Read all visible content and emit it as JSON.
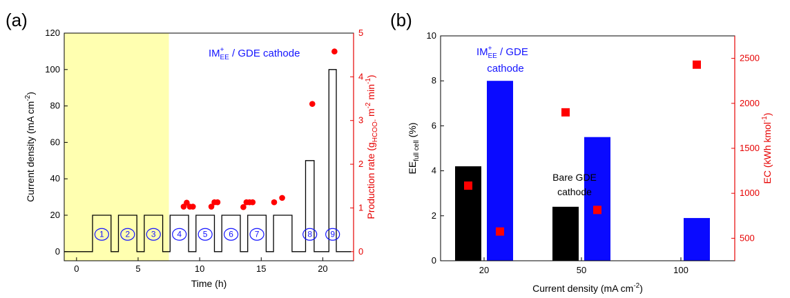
{
  "chart_data": [
    {
      "type": "line",
      "panel_label": "(a)",
      "xlabel": "Time (h)",
      "ylabel": {
        "main": "Current density (mA cm",
        "sup": "-2",
        "end": ")"
      },
      "y2label": {
        "main": "Production rate (g",
        "sub": "HCOO-",
        "mid": " m",
        "sup1": "-2",
        "mid2": " min",
        "sup2": "-1",
        "end": ")"
      },
      "xlim": [
        -1,
        22.5
      ],
      "ylim": [
        -5,
        120
      ],
      "y2lim": [
        -0.2083,
        5
      ],
      "xticks": [
        0,
        5,
        10,
        15,
        20
      ],
      "yticks": [
        0,
        20,
        40,
        60,
        80,
        100,
        120
      ],
      "y2ticks": [
        0,
        1,
        2,
        3,
        4,
        5
      ],
      "annotation": {
        "main": "IM",
        "sup": "+",
        "sub": "EE",
        "rest": " / GDE cathode"
      },
      "shaded_region": {
        "x0": -1,
        "x1": 7.5,
        "color": "#ffffb0"
      },
      "current_profile": {
        "x": [
          -1,
          1.3,
          1.3,
          2.8,
          2.8,
          3.4,
          3.4,
          4.9,
          4.9,
          5.5,
          5.5,
          7.0,
          7.0,
          7.6,
          7.6,
          9.1,
          9.1,
          9.7,
          9.7,
          11.2,
          11.2,
          11.8,
          11.8,
          13.3,
          13.3,
          13.9,
          13.9,
          15.4,
          15.4,
          16.0,
          16.0,
          17.5,
          17.5,
          18.6,
          18.6,
          19.3,
          19.3,
          20.5,
          20.5,
          21.1,
          21.1,
          22.3
        ],
        "y": [
          0,
          0,
          20,
          20,
          0,
          0,
          20,
          20,
          0,
          0,
          20,
          20,
          0,
          0,
          20,
          20,
          0,
          0,
          20,
          20,
          0,
          0,
          20,
          20,
          0,
          0,
          20,
          20,
          0,
          0,
          20,
          20,
          0,
          0,
          50,
          50,
          0,
          0,
          100,
          100,
          0,
          0
        ],
        "color": "#000000"
      },
      "production_rate": {
        "x": [
          8.7,
          8.95,
          9.2,
          9.45,
          10.95,
          11.2,
          11.45,
          13.55,
          13.8,
          14.05,
          14.3,
          16.05,
          16.7,
          19.15,
          20.95
        ],
        "y": [
          1.03,
          1.12,
          1.03,
          1.03,
          1.03,
          1.13,
          1.13,
          1.02,
          1.13,
          1.13,
          1.13,
          1.13,
          1.23,
          3.38,
          4.58
        ],
        "color": "#ff0000"
      },
      "steps": {
        "labels": [
          "1",
          "2",
          "3",
          "4",
          "5",
          "6",
          "7",
          "8",
          "9"
        ],
        "x": [
          2.05,
          4.15,
          6.25,
          8.35,
          10.45,
          12.55,
          14.65,
          18.95,
          20.8
        ],
        "y": 9.5,
        "color": "#1414ff"
      }
    },
    {
      "type": "bar",
      "panel_label": "(b)",
      "xlabel": {
        "main": "Current density (mA cm",
        "sup": "-2",
        "end": ")"
      },
      "ylabel": {
        "main": "EE",
        "sub": "full cell",
        "end": " (%)"
      },
      "y2label": {
        "main": "EC (kWh kmol",
        "sup": "-1",
        "end": ")"
      },
      "categories": [
        "20",
        "50",
        "100"
      ],
      "ylim": [
        0,
        10
      ],
      "y2lim": [
        250,
        2750
      ],
      "yticks": [
        0,
        2,
        4,
        6,
        8,
        10
      ],
      "y2ticks": [
        500,
        1000,
        1500,
        2000,
        2500
      ],
      "series": [
        {
          "name": "Bare GDE cathode",
          "color": "#000000",
          "values": [
            4.2,
            2.4,
            null
          ]
        },
        {
          "name": "IM+EE / GDE cathode",
          "color": "#0a0aff",
          "values": [
            8.0,
            5.5,
            1.9
          ]
        }
      ],
      "ec_points": {
        "color": "#ff0000",
        "bare": [
          1085,
          1900,
          null
        ],
        "im": [
          575,
          815,
          2430
        ]
      },
      "annotations": {
        "im_line1": {
          "main": "IM",
          "sup": "+",
          "sub": "EE",
          "rest": " / GDE"
        },
        "im_line2": "cathode",
        "bare_line1": "Bare GDE",
        "bare_line2": "cathode"
      }
    }
  ]
}
